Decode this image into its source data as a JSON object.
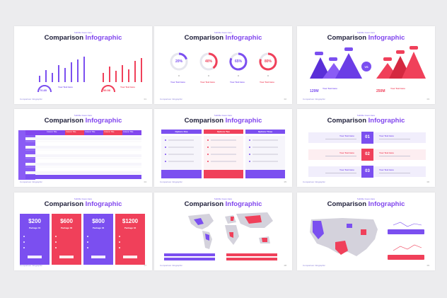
{
  "common": {
    "subtitle": "Subtitle Goes Here",
    "title_main": "Comparison",
    "title_accent": "Infographic",
    "footer": "Comparison Infographic"
  },
  "colors": {
    "purple": "#7b4ff0",
    "red": "#f0405a",
    "dark": "#1f1f3a"
  },
  "slide1": {
    "gauge_left": "70.85",
    "gauge_right": "59.98",
    "text_title": "Your Text Here",
    "page": "01"
  },
  "slide2": {
    "circles": [
      "20%",
      "40%",
      "65%",
      "80%"
    ],
    "text_title": "Your Text Here",
    "page": "02"
  },
  "slide3": {
    "vs": "VS",
    "left_value": "129M",
    "right_value": "250M",
    "text_title": "Your Text Here",
    "page": "03"
  },
  "slide4": {
    "columns": [
      "Column Title",
      "Column Title",
      "Column Title",
      "Column Title",
      "Column Title"
    ],
    "page": "04"
  },
  "slide5": {
    "headers": [
      "Options One",
      "Options Two",
      "Options Three"
    ],
    "page": "05"
  },
  "slide6": {
    "numbers": [
      "01",
      "02",
      "03"
    ],
    "text_title": "Your Text Here",
    "page": "06"
  },
  "slide7": {
    "prices": [
      "$200",
      "$600",
      "$800",
      "$1200"
    ],
    "packages": [
      "Package 01",
      "Package 02",
      "Package 03",
      "Package 04"
    ],
    "page": "07"
  },
  "slide8": {
    "page": "08"
  },
  "slide9": {
    "page": "09"
  }
}
